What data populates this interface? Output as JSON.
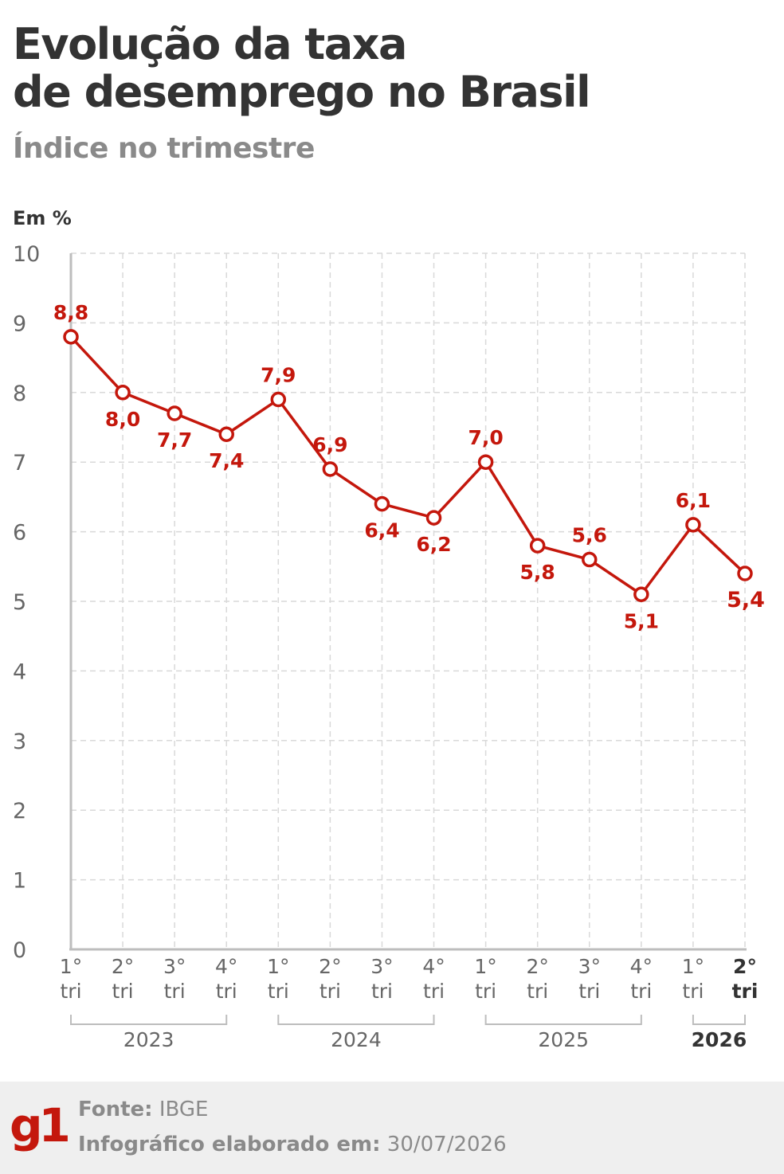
{
  "header": {
    "title_line1": "Evolução da taxa",
    "title_line2": "de desemprego no Brasil",
    "subtitle": "Índice no trimestre"
  },
  "chart_data": {
    "type": "line",
    "ylabel": "Em %",
    "ylim": [
      0,
      10
    ],
    "yticks": [
      "0",
      "1",
      "2",
      "3",
      "4",
      "5",
      "6",
      "7",
      "8",
      "9",
      "10"
    ],
    "grid": true,
    "colors": {
      "line": "#c4170c",
      "grid": "#d9d9d9",
      "axis": "#bdbdbd",
      "tick_text": "#666666"
    },
    "categories": [
      {
        "q": "1°",
        "t": "tri"
      },
      {
        "q": "2°",
        "t": "tri"
      },
      {
        "q": "3°",
        "t": "tri"
      },
      {
        "q": "4°",
        "t": "tri"
      },
      {
        "q": "1°",
        "t": "tri"
      },
      {
        "q": "2°",
        "t": "tri"
      },
      {
        "q": "3°",
        "t": "tri"
      },
      {
        "q": "4°",
        "t": "tri"
      },
      {
        "q": "1°",
        "t": "tri"
      },
      {
        "q": "2°",
        "t": "tri"
      },
      {
        "q": "3°",
        "t": "tri"
      },
      {
        "q": "4°",
        "t": "tri"
      },
      {
        "q": "1°",
        "t": "tri"
      },
      {
        "q": "2°",
        "t": "tri"
      }
    ],
    "years": [
      {
        "label": "2023",
        "from": 0,
        "to": 3
      },
      {
        "label": "2024",
        "from": 4,
        "to": 7
      },
      {
        "label": "2025",
        "from": 8,
        "to": 11
      },
      {
        "label": "2026",
        "from": 12,
        "to": 13
      }
    ],
    "values": [
      8.8,
      8.0,
      7.7,
      7.4,
      7.9,
      6.9,
      6.4,
      6.2,
      7.0,
      5.8,
      5.6,
      5.1,
      6.1,
      5.4
    ],
    "value_labels": [
      "8,8",
      "8,0",
      "7,7",
      "7,4",
      "7,9",
      "6,9",
      "6,4",
      "6,2",
      "7,0",
      "5,8",
      "5,6",
      "5,1",
      "6,1",
      "5,4"
    ],
    "label_positions": [
      "above",
      "below",
      "below",
      "below",
      "above",
      "above",
      "below",
      "below",
      "above",
      "below",
      "above",
      "below",
      "above",
      "below"
    ]
  },
  "footer": {
    "logo": "g1",
    "source_label": "Fonte:",
    "source_value": "IBGE",
    "date_label": "Infográfico elaborado em:",
    "date_value": "30/07/2026"
  }
}
